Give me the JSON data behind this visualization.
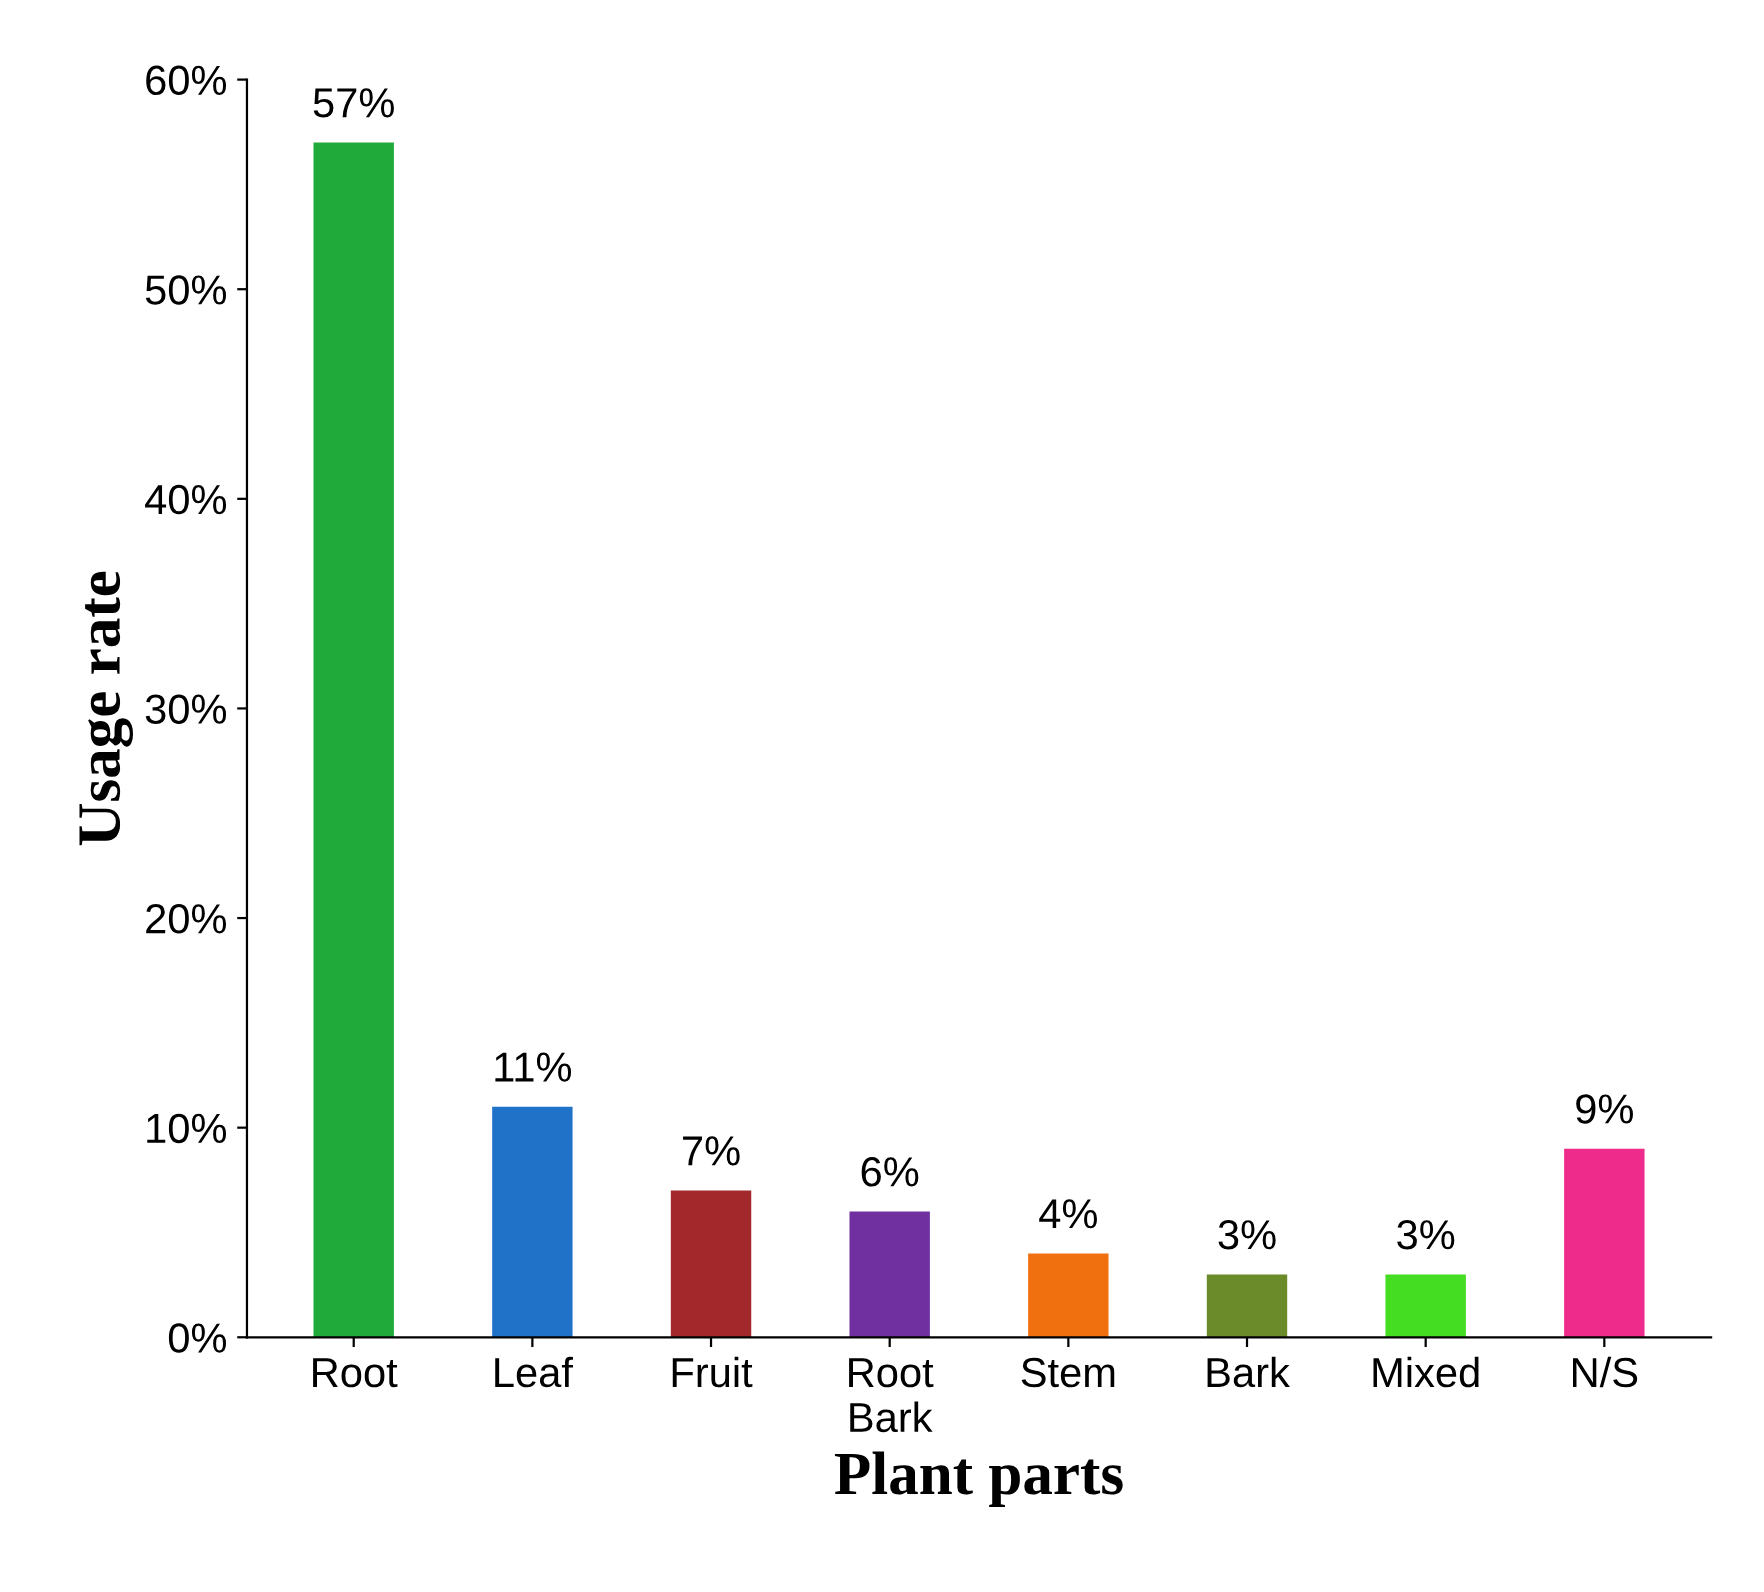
{
  "chart_data": {
    "type": "bar",
    "xlabel": "Plant parts",
    "ylabel": "Usage rate",
    "categories": [
      "Root",
      "Leaf",
      "Fruit",
      "Root\nBark",
      "Stem",
      "Bark",
      "Mixed",
      "N/S"
    ],
    "values": [
      57,
      11,
      7,
      6,
      4,
      3,
      3,
      9
    ],
    "colors": [
      "#1faa3a",
      "#1f72c8",
      "#a3282c",
      "#7030a0",
      "#f07010",
      "#6b8a2a",
      "#44dd22",
      "#ee2a8a"
    ],
    "value_labels": [
      "57%",
      "11%",
      "7%",
      "6%",
      "4%",
      "3%",
      "3%",
      "9%"
    ],
    "ylim": [
      0,
      60
    ],
    "yticks": [
      {
        "value": 0,
        "label": "0%"
      },
      {
        "value": 10,
        "label": "10%"
      },
      {
        "value": 20,
        "label": "20%"
      },
      {
        "value": 30,
        "label": "30%"
      },
      {
        "value": 40,
        "label": "40%"
      },
      {
        "value": 50,
        "label": "50%"
      },
      {
        "value": 60,
        "label": "60%"
      }
    ],
    "grid": false
  }
}
